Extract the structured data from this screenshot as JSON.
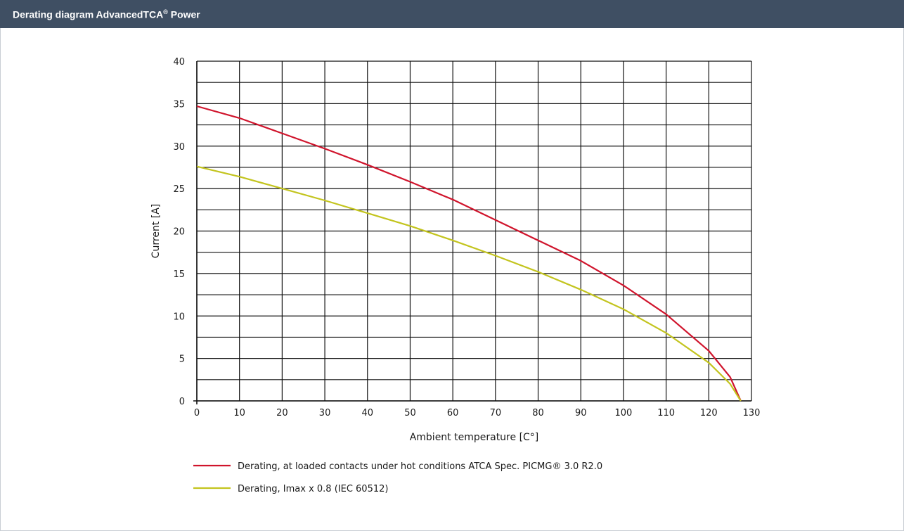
{
  "header": {
    "title_prefix": "Derating diagram AdvancedTCA",
    "title_mark": "®",
    "title_suffix": " Power"
  },
  "chart_data": {
    "type": "line",
    "title": "Derating diagram AdvancedTCA® Power",
    "xlabel": "Ambient temperature [C°]",
    "ylabel": "Current [A]",
    "xlim": [
      0,
      130
    ],
    "ylim": [
      0,
      40
    ],
    "x_ticks": [
      0,
      10,
      20,
      30,
      40,
      50,
      60,
      70,
      80,
      90,
      100,
      110,
      120,
      130
    ],
    "y_ticks": [
      0,
      5,
      10,
      15,
      20,
      25,
      30,
      35,
      40
    ],
    "x_minor_step": 10,
    "y_minor_step": 2.5,
    "grid": true,
    "legend_position": "bottom-left",
    "series": [
      {
        "name": "Derating, at loaded contacts under hot conditions ATCA Spec. PICMG® 3.0 R2.0",
        "color": "#d0142c",
        "x": [
          0,
          10,
          20,
          30,
          40,
          50,
          60,
          70,
          80,
          90,
          100,
          110,
          120,
          125,
          127.5
        ],
        "y": [
          34.7,
          33.3,
          31.5,
          29.7,
          27.8,
          25.8,
          23.7,
          21.3,
          18.9,
          16.5,
          13.6,
          10.2,
          5.9,
          2.8,
          0
        ]
      },
      {
        "name": "Derating, Imax x 0.8 (IEC 60512)",
        "color": "#c3c41e",
        "x": [
          0,
          10,
          20,
          30,
          40,
          50,
          60,
          70,
          80,
          90,
          100,
          110,
          120,
          125,
          127.5
        ],
        "y": [
          27.6,
          26.4,
          25.0,
          23.6,
          22.1,
          20.6,
          18.9,
          17.1,
          15.2,
          13.1,
          10.8,
          8.0,
          4.5,
          2.0,
          0
        ]
      }
    ]
  }
}
